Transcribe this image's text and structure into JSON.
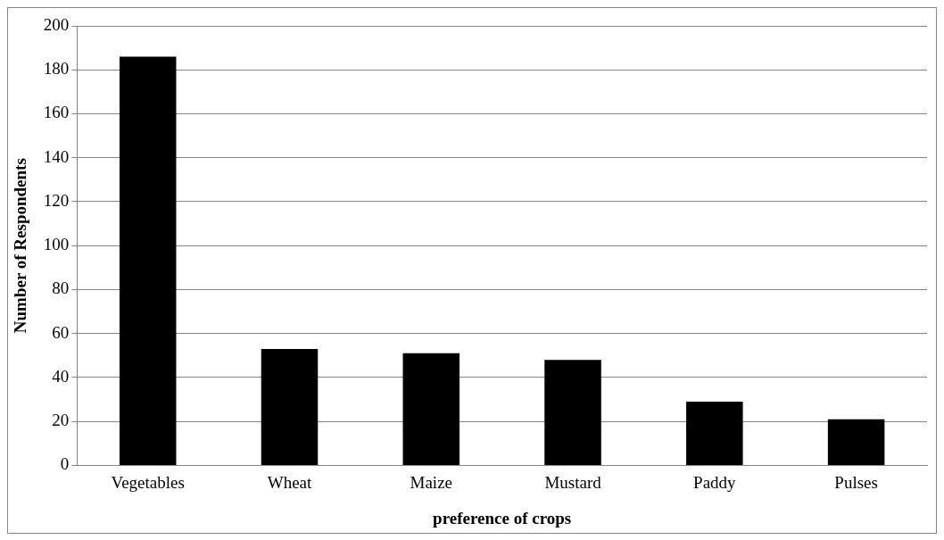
{
  "chart_data": {
    "type": "bar",
    "xlabel": "preference of crops",
    "ylabel": "Number of Respondents",
    "categories": [
      "Vegetables",
      "Wheat",
      "Maize",
      "Mustard",
      "Paddy",
      "Pulses"
    ],
    "values": [
      186,
      53,
      51,
      48,
      29,
      21
    ],
    "color": "#000000",
    "ylim": [
      0,
      200
    ],
    "yticks": [
      0,
      20,
      40,
      60,
      80,
      100,
      120,
      140,
      160,
      180,
      200
    ],
    "grid": "y"
  }
}
